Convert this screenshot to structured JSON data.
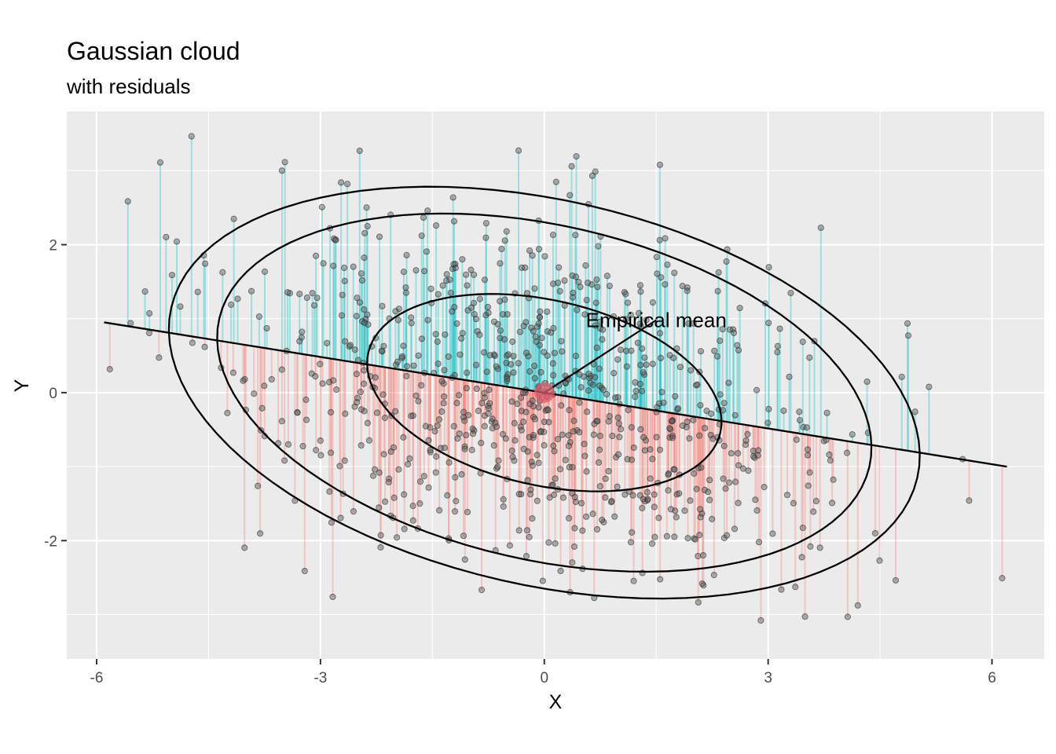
{
  "chart_data": {
    "type": "scatter",
    "title": "Gaussian cloud",
    "subtitle": "with residuals",
    "xlabel": "X",
    "ylabel": "Y",
    "xlim": [
      -6.4,
      6.7
    ],
    "ylim": [
      -3.6,
      3.8
    ],
    "x_ticks": [
      -6,
      -3,
      0,
      3,
      6
    ],
    "x_tick_labels": [
      "-6",
      "-3",
      "0",
      "3",
      "6"
    ],
    "y_ticks": [
      -2,
      0,
      2
    ],
    "y_tick_labels": [
      "-2",
      "0",
      "2"
    ],
    "grid": true,
    "n_points": 900,
    "regression_line": {
      "x": [
        -5.9,
        6.2
      ],
      "y": [
        0.95,
        -1.0
      ],
      "slope": -0.161,
      "intercept": 0.0
    },
    "empirical_mean": {
      "x": 0.0,
      "y": 0.0,
      "label": "Empirical mean",
      "label_anchor": [
        1.5,
        0.98
      ]
    },
    "contour_ellipses": [
      {
        "level": 1,
        "rx": 2.42,
        "ry": 1.25,
        "rotation_deg": -13
      },
      {
        "level": 2,
        "rx": 4.47,
        "ry": 2.26,
        "rotation_deg": -13
      },
      {
        "level": 3,
        "rx": 5.13,
        "ry": 2.6,
        "rotation_deg": -13
      }
    ],
    "residual_colors": {
      "positive": "#00BFC4",
      "negative": "#F8766D"
    },
    "point_color": "#595959",
    "mean_color": "#E05A6A",
    "panel_background": "#EBEBEB",
    "grid_color": "#FFFFFF"
  }
}
